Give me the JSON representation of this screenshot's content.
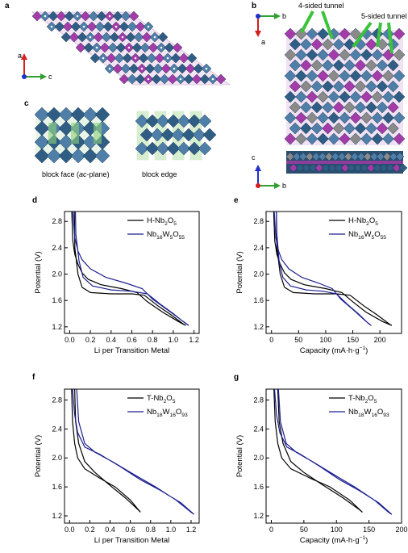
{
  "panels": {
    "a": {
      "label": "a",
      "axes": {
        "a": "a",
        "c": "c"
      }
    },
    "b": {
      "label": "b",
      "axes_top": {
        "b": "b",
        "a": "a"
      },
      "axes_bottom": {
        "c": "c",
        "b": "b"
      },
      "annotations": [
        "4-sided tunnel",
        "5-sided tunnel"
      ]
    },
    "c": {
      "label": "c",
      "caption_left_pre": "block face (",
      "caption_left_italic": "ac",
      "caption_left_post": "-plane)",
      "caption_right": "block edge"
    }
  },
  "colors": {
    "octahedra": "#2f5d84",
    "octahedra_light": "#4f7fa8",
    "tunnel_purple": "#a53aa9",
    "tunnel_grey": "#8a8a8a",
    "block_green": "#8fd17a",
    "series_black": "#000000",
    "series_blue": "#1c1f8f",
    "axis_red": "#d31f1f",
    "axis_green": "#2fa02f",
    "axis_blue": "#1f2fcf",
    "arrow_green": "#3cc23c"
  },
  "chart_data": [
    {
      "label": "d",
      "type": "line",
      "xlabel": "Li per Transition Metal",
      "ylabel": "Potential (V)",
      "xlim": [
        -0.05,
        1.25
      ],
      "ylim": [
        1.1,
        2.95
      ],
      "xticks": [
        "0.0",
        "0.2",
        "0.4",
        "0.6",
        "0.8",
        "1.0",
        "1.2"
      ],
      "xtick_values": [
        0,
        0.2,
        0.4,
        0.6,
        0.8,
        1.0,
        1.2
      ],
      "yticks": [
        "1.2",
        "1.6",
        "2.0",
        "2.4",
        "2.8"
      ],
      "ytick_values": [
        1.2,
        1.6,
        2.0,
        2.4,
        2.8
      ],
      "legend": [
        {
          "pre": "H-Nb",
          "parts": [
            [
              "sub",
              "2"
            ],
            [
              "t",
              "O"
            ],
            [
              "sub",
              "5"
            ]
          ],
          "color": "#000000"
        },
        {
          "pre": "Nb",
          "parts": [
            [
              "sub",
              "16"
            ],
            [
              "t",
              "W"
            ],
            [
              "sub",
              "5"
            ],
            [
              "t",
              "O"
            ],
            [
              "sub",
              "55"
            ]
          ],
          "color": "#1c1f8f"
        }
      ],
      "series": [
        {
          "color": "#000000",
          "points": [
            [
              0.02,
              2.95
            ],
            [
              0.03,
              2.5
            ],
            [
              0.05,
              2.3
            ],
            [
              0.08,
              2.15
            ],
            [
              0.12,
              2.02
            ],
            [
              0.18,
              1.92
            ],
            [
              0.3,
              1.84
            ],
            [
              0.5,
              1.78
            ],
            [
              0.65,
              1.72
            ],
            [
              0.75,
              1.58
            ],
            [
              0.9,
              1.42
            ],
            [
              1.05,
              1.28
            ],
            [
              1.12,
              1.22
            ],
            [
              1.1,
              1.24
            ],
            [
              0.98,
              1.38
            ],
            [
              0.85,
              1.52
            ],
            [
              0.72,
              1.68
            ],
            [
              0.6,
              1.7
            ],
            [
              0.4,
              1.7
            ],
            [
              0.2,
              1.72
            ],
            [
              0.12,
              1.8
            ],
            [
              0.08,
              2.0
            ],
            [
              0.05,
              2.4
            ],
            [
              0.045,
              2.95
            ]
          ]
        },
        {
          "color": "#1c1f8f",
          "points": [
            [
              0.03,
              2.95
            ],
            [
              0.05,
              2.55
            ],
            [
              0.08,
              2.35
            ],
            [
              0.12,
              2.22
            ],
            [
              0.2,
              2.08
            ],
            [
              0.35,
              1.95
            ],
            [
              0.55,
              1.86
            ],
            [
              0.7,
              1.78
            ],
            [
              0.8,
              1.62
            ],
            [
              0.95,
              1.45
            ],
            [
              1.08,
              1.3
            ],
            [
              1.15,
              1.22
            ],
            [
              1.12,
              1.25
            ],
            [
              1.0,
              1.4
            ],
            [
              0.87,
              1.55
            ],
            [
              0.75,
              1.7
            ],
            [
              0.6,
              1.74
            ],
            [
              0.4,
              1.76
            ],
            [
              0.22,
              1.82
            ],
            [
              0.13,
              1.95
            ],
            [
              0.09,
              2.2
            ],
            [
              0.06,
              2.6
            ],
            [
              0.055,
              2.95
            ]
          ]
        }
      ]
    },
    {
      "label": "e",
      "type": "line",
      "xlabel": "Capacity (mA·h·g",
      "xlabel_sup": "−1",
      "xlabel_post": ")",
      "ylabel": "Potential (V)",
      "xlim": [
        -10,
        240
      ],
      "ylim": [
        1.1,
        2.95
      ],
      "xticks": [
        "0",
        "50",
        "100",
        "150",
        "200"
      ],
      "xtick_values": [
        0,
        50,
        100,
        150,
        200
      ],
      "yticks": [
        "1.2",
        "1.6",
        "2.0",
        "2.4",
        "2.8"
      ],
      "ytick_values": [
        1.2,
        1.6,
        2.0,
        2.4,
        2.8
      ],
      "legend": [
        {
          "pre": "H-Nb",
          "parts": [
            [
              "sub",
              "2"
            ],
            [
              "t",
              "O"
            ],
            [
              "sub",
              "5"
            ]
          ],
          "color": "#000000"
        },
        {
          "pre": "Nb",
          "parts": [
            [
              "sub",
              "16"
            ],
            [
              "t",
              "W"
            ],
            [
              "sub",
              "5"
            ],
            [
              "t",
              "O"
            ],
            [
              "sub",
              "55"
            ]
          ],
          "color": "#1c1f8f"
        }
      ],
      "series": [
        {
          "color": "#000000",
          "points": [
            [
              4,
              2.95
            ],
            [
              6,
              2.5
            ],
            [
              10,
              2.3
            ],
            [
              16,
              2.15
            ],
            [
              24,
              2.02
            ],
            [
              36,
              1.92
            ],
            [
              60,
              1.84
            ],
            [
              100,
              1.78
            ],
            [
              130,
              1.72
            ],
            [
              150,
              1.58
            ],
            [
              175,
              1.42
            ],
            [
              205,
              1.28
            ],
            [
              222,
              1.22
            ],
            [
              218,
              1.24
            ],
            [
              195,
              1.38
            ],
            [
              170,
              1.52
            ],
            [
              145,
              1.68
            ],
            [
              120,
              1.7
            ],
            [
              80,
              1.7
            ],
            [
              40,
              1.72
            ],
            [
              24,
              1.8
            ],
            [
              16,
              2.0
            ],
            [
              10,
              2.4
            ],
            [
              9,
              2.95
            ]
          ]
        },
        {
          "color": "#1c1f8f",
          "points": [
            [
              5,
              2.95
            ],
            [
              8,
              2.55
            ],
            [
              13,
              2.35
            ],
            [
              19,
              2.22
            ],
            [
              32,
              2.08
            ],
            [
              56,
              1.95
            ],
            [
              88,
              1.86
            ],
            [
              112,
              1.78
            ],
            [
              128,
              1.62
            ],
            [
              152,
              1.45
            ],
            [
              172,
              1.3
            ],
            [
              184,
              1.22
            ],
            [
              179,
              1.25
            ],
            [
              160,
              1.4
            ],
            [
              139,
              1.55
            ],
            [
              120,
              1.7
            ],
            [
              96,
              1.74
            ],
            [
              64,
              1.76
            ],
            [
              35,
              1.82
            ],
            [
              21,
              1.95
            ],
            [
              14,
              2.2
            ],
            [
              10,
              2.6
            ],
            [
              9,
              2.95
            ]
          ]
        }
      ]
    },
    {
      "label": "f",
      "type": "line",
      "xlabel": "Li per Transition Metal",
      "ylabel": "Potential (V)",
      "xlim": [
        -0.05,
        1.28
      ],
      "ylim": [
        1.1,
        2.95
      ],
      "xticks": [
        "0.0",
        "0.2",
        "0.4",
        "0.6",
        "0.8",
        "1.0",
        "1.2"
      ],
      "xtick_values": [
        0,
        0.2,
        0.4,
        0.6,
        0.8,
        1.0,
        1.2
      ],
      "yticks": [
        "1.2",
        "1.6",
        "2.0",
        "2.4",
        "2.8"
      ],
      "ytick_values": [
        1.2,
        1.6,
        2.0,
        2.4,
        2.8
      ],
      "legend": [
        {
          "pre": "T-Nb",
          "parts": [
            [
              "sub",
              "2"
            ],
            [
              "t",
              "O"
            ],
            [
              "sub",
              "5"
            ]
          ],
          "color": "#000000"
        },
        {
          "pre": "Nb",
          "parts": [
            [
              "sub",
              "18"
            ],
            [
              "t",
              "W"
            ],
            [
              "sub",
              "16"
            ],
            [
              "t",
              "O"
            ],
            [
              "sub",
              "93"
            ]
          ],
          "color": "#1c1f8f"
        }
      ],
      "series": [
        {
          "color": "#000000",
          "points": [
            [
              0.02,
              2.95
            ],
            [
              0.03,
              2.5
            ],
            [
              0.05,
              2.2
            ],
            [
              0.08,
              2.0
            ],
            [
              0.15,
              1.85
            ],
            [
              0.3,
              1.72
            ],
            [
              0.45,
              1.6
            ],
            [
              0.6,
              1.42
            ],
            [
              0.7,
              1.25
            ],
            [
              0.68,
              1.28
            ],
            [
              0.55,
              1.45
            ],
            [
              0.4,
              1.62
            ],
            [
              0.25,
              1.8
            ],
            [
              0.15,
              1.95
            ],
            [
              0.09,
              2.2
            ],
            [
              0.06,
              2.5
            ],
            [
              0.05,
              2.95
            ]
          ]
        },
        {
          "color": "#1c1f8f",
          "points": [
            [
              0.03,
              2.95
            ],
            [
              0.05,
              2.6
            ],
            [
              0.08,
              2.35
            ],
            [
              0.15,
              2.15
            ],
            [
              0.3,
              2.05
            ],
            [
              0.5,
              1.88
            ],
            [
              0.7,
              1.7
            ],
            [
              0.9,
              1.55
            ],
            [
              1.1,
              1.38
            ],
            [
              1.23,
              1.22
            ],
            [
              1.2,
              1.25
            ],
            [
              1.05,
              1.42
            ],
            [
              0.85,
              1.6
            ],
            [
              0.65,
              1.76
            ],
            [
              0.42,
              1.95
            ],
            [
              0.25,
              2.08
            ],
            [
              0.15,
              2.2
            ],
            [
              0.09,
              2.5
            ],
            [
              0.07,
              2.95
            ]
          ]
        }
      ]
    },
    {
      "label": "g",
      "type": "line",
      "xlabel": "Capacity (mA·h·g",
      "xlabel_sup": "−1",
      "xlabel_post": ")",
      "ylabel": "Potential (V)",
      "xlim": [
        -8,
        200
      ],
      "ylim": [
        1.1,
        2.95
      ],
      "xticks": [
        "0",
        "50",
        "100",
        "150",
        "200"
      ],
      "xtick_values": [
        0,
        50,
        100,
        150,
        200
      ],
      "yticks": [
        "1.2",
        "1.6",
        "2.0",
        "2.4",
        "2.8"
      ],
      "ytick_values": [
        1.2,
        1.6,
        2.0,
        2.4,
        2.8
      ],
      "legend": [
        {
          "pre": "T-Nb",
          "parts": [
            [
              "sub",
              "2"
            ],
            [
              "t",
              "O"
            ],
            [
              "sub",
              "5"
            ]
          ],
          "color": "#000000"
        },
        {
          "pre": "Nb",
          "parts": [
            [
              "sub",
              "18"
            ],
            [
              "t",
              "W"
            ],
            [
              "sub",
              "16"
            ],
            [
              "t",
              "O"
            ],
            [
              "sub",
              "93"
            ]
          ],
          "color": "#1c1f8f"
        }
      ],
      "series": [
        {
          "color": "#000000",
          "points": [
            [
              4,
              2.95
            ],
            [
              6,
              2.5
            ],
            [
              10,
              2.2
            ],
            [
              16,
              2.0
            ],
            [
              30,
              1.85
            ],
            [
              60,
              1.72
            ],
            [
              90,
              1.6
            ],
            [
              120,
              1.42
            ],
            [
              140,
              1.25
            ],
            [
              136,
              1.28
            ],
            [
              110,
              1.45
            ],
            [
              80,
              1.62
            ],
            [
              50,
              1.8
            ],
            [
              30,
              1.95
            ],
            [
              18,
              2.2
            ],
            [
              12,
              2.5
            ],
            [
              10,
              2.95
            ]
          ]
        },
        {
          "color": "#1c1f8f",
          "points": [
            [
              5,
              2.95
            ],
            [
              8,
              2.6
            ],
            [
              13,
              2.35
            ],
            [
              24,
              2.15
            ],
            [
              45,
              2.05
            ],
            [
              75,
              1.88
            ],
            [
              105,
              1.7
            ],
            [
              135,
              1.55
            ],
            [
              165,
              1.38
            ],
            [
              185,
              1.22
            ],
            [
              180,
              1.25
            ],
            [
              158,
              1.42
            ],
            [
              128,
              1.6
            ],
            [
              98,
              1.76
            ],
            [
              63,
              1.95
            ],
            [
              38,
              2.08
            ],
            [
              23,
              2.2
            ],
            [
              14,
              2.5
            ],
            [
              11,
              2.95
            ]
          ]
        }
      ]
    }
  ]
}
